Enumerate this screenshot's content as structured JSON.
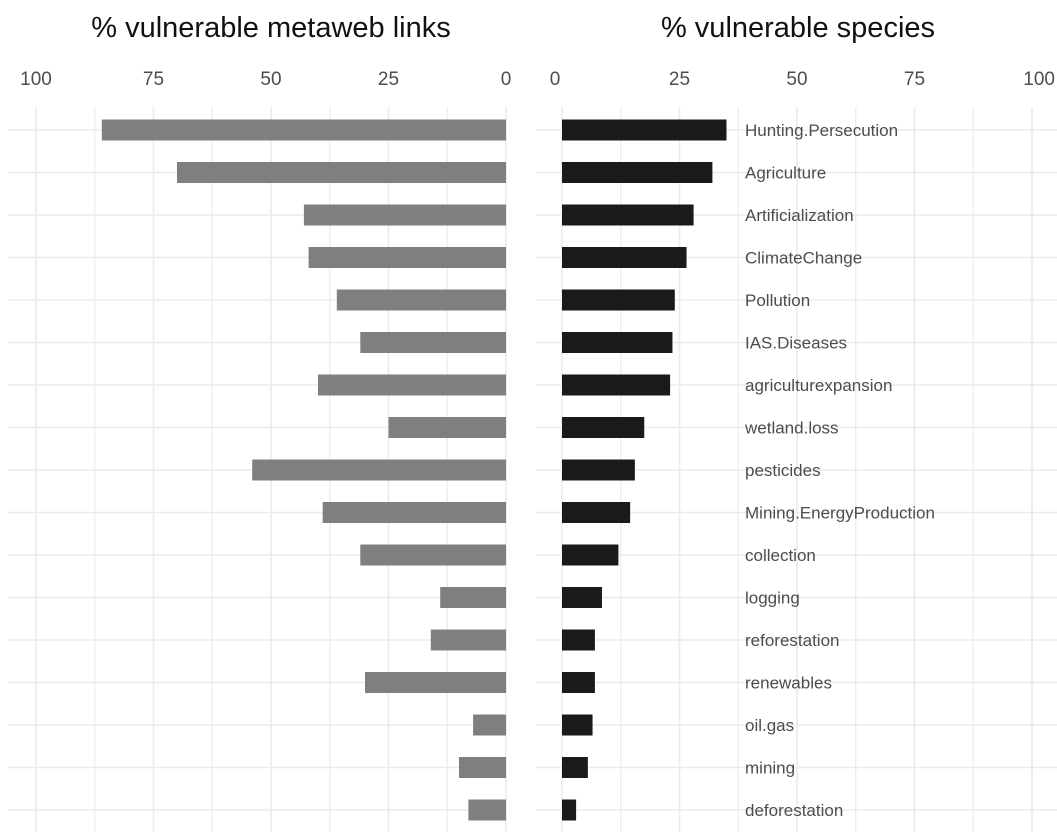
{
  "chart_data": [
    {
      "type": "bar",
      "orientation": "horizontal",
      "direction": "reversed",
      "title": "% vulnerable metaweb links",
      "xlim": [
        0,
        100
      ],
      "xticks": [
        100,
        75,
        50,
        25,
        0
      ],
      "grid": true,
      "color": "#7f7f7f",
      "categories": [
        "Hunting.Persecution",
        "Agriculture",
        "Artificialization",
        "ClimateChange",
        "Pollution",
        "IAS.Diseases",
        "agriculturexpansion",
        "wetland.loss",
        "pesticides",
        "Mining.EnergyProduction",
        "collection",
        "logging",
        "reforestation",
        "renewables",
        "oil.gas",
        "mining",
        "deforestation"
      ],
      "values": [
        86,
        70,
        43,
        42,
        36,
        31,
        40,
        25,
        54,
        39,
        31,
        14,
        16,
        30,
        7,
        10,
        8
      ]
    },
    {
      "type": "bar",
      "orientation": "horizontal",
      "title": "% vulnerable species",
      "xlim": [
        0,
        100
      ],
      "xticks": [
        0,
        25,
        50,
        75,
        100
      ],
      "grid": true,
      "color": "#1a1a1a",
      "categories": [
        "Hunting.Persecution",
        "Agriculture",
        "Artificialization",
        "ClimateChange",
        "Pollution",
        "IAS.Diseases",
        "agriculturexpansion",
        "wetland.loss",
        "pesticides",
        "Mining.EnergyProduction",
        "collection",
        "logging",
        "reforestation",
        "renewables",
        "oil.gas",
        "mining",
        "deforestation"
      ],
      "values": [
        35,
        32,
        28,
        26.5,
        24,
        23.5,
        23,
        17.5,
        15.5,
        14.5,
        12,
        8.5,
        7,
        7,
        6.5,
        5.5,
        3
      ]
    }
  ]
}
